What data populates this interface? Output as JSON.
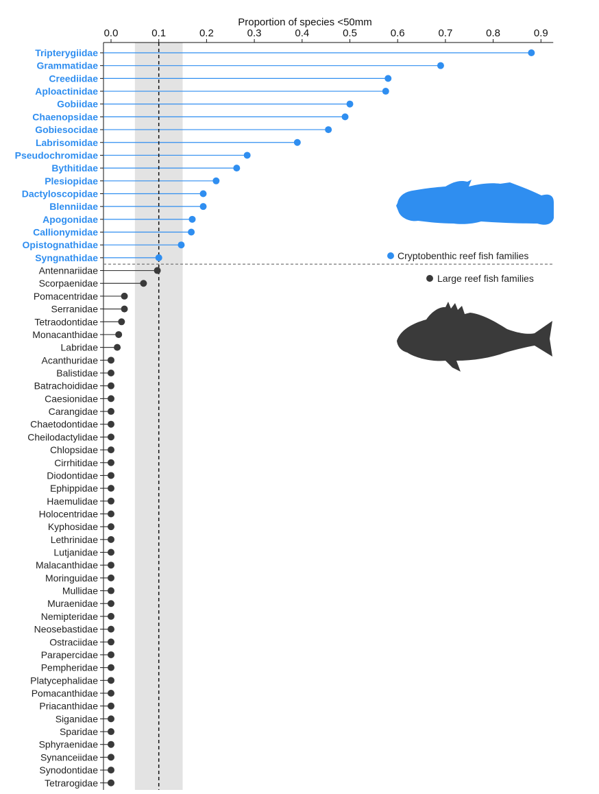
{
  "chart_data": {
    "type": "lollipop",
    "title": "",
    "xlabel": "Proportion of species <50mm",
    "ylabel": "",
    "x_axis_position": "top",
    "xlim": [
      0,
      0.92
    ],
    "xticks": [
      "0.0",
      "0.1",
      "0.2",
      "0.3",
      "0.4",
      "0.5",
      "0.6",
      "0.7",
      "0.8",
      "0.9"
    ],
    "reference_line": 0.1,
    "shaded_band": [
      0.05,
      0.15
    ],
    "grid": false,
    "legend_position": "right",
    "colors": {
      "Cryptobenthic reef fish families": "#2f8ef0",
      "Large reef fish families": "#3a3a3a"
    },
    "icons": [
      "blenny-silhouette-icon",
      "grouper-silhouette-icon"
    ],
    "series": [
      {
        "name": "Cryptobenthic reef fish families",
        "categories": [
          "Tripterygiidae",
          "Grammatidae",
          "Creediidae",
          "Aploactinidae",
          "Gobiidae",
          "Chaenopsidae",
          "Gobiesocidae",
          "Labrisomidae",
          "Pseudochromidae",
          "Bythitidae",
          "Plesiopidae",
          "Dactyloscopidae",
          "Blenniidae",
          "Apogonidae",
          "Callionymidae",
          "Opistognathidae",
          "Syngnathidae"
        ],
        "values": [
          0.88,
          0.69,
          0.58,
          0.575,
          0.5,
          0.49,
          0.455,
          0.39,
          0.285,
          0.263,
          0.22,
          0.193,
          0.193,
          0.17,
          0.168,
          0.147,
          0.1
        ]
      },
      {
        "name": "Large reef fish families",
        "categories": [
          "Antennariidae",
          "Scorpaenidae",
          "Pomacentridae",
          "Serranidae",
          "Tetraodontidae",
          "Monacanthidae",
          "Labridae",
          "Acanthuridae",
          "Balistidae",
          "Batrachoididae",
          "Caesionidae",
          "Carangidae",
          "Chaetodontidae",
          "Cheilodactylidae",
          "Chlopsidae",
          "Cirrhitidae",
          "Diodontidae",
          "Ephippidae",
          "Haemulidae",
          "Holocentridae",
          "Kyphosidae",
          "Lethrinidae",
          "Lutjanidae",
          "Malacanthidae",
          "Moringuidae",
          "Mullidae",
          "Muraenidae",
          "Nemipteridae",
          "Neosebastidae",
          "Ostraciidae",
          "Parapercidae",
          "Pempheridae",
          "Platycephalidae",
          "Pomacanthidae",
          "Priacanthidae",
          "Siganidae",
          "Sparidae",
          "Sphyraenidae",
          "Synanceiidae",
          "Synodontidae",
          "Tetrarogidae"
        ],
        "values": [
          0.097,
          0.068,
          0.028,
          0.028,
          0.022,
          0.016,
          0.013,
          0,
          0,
          0,
          0,
          0,
          0,
          0,
          0,
          0,
          0,
          0,
          0,
          0,
          0,
          0,
          0,
          0,
          0,
          0,
          0,
          0,
          0,
          0,
          0,
          0,
          0,
          0,
          0,
          0,
          0,
          0,
          0,
          0,
          0
        ]
      }
    ]
  }
}
